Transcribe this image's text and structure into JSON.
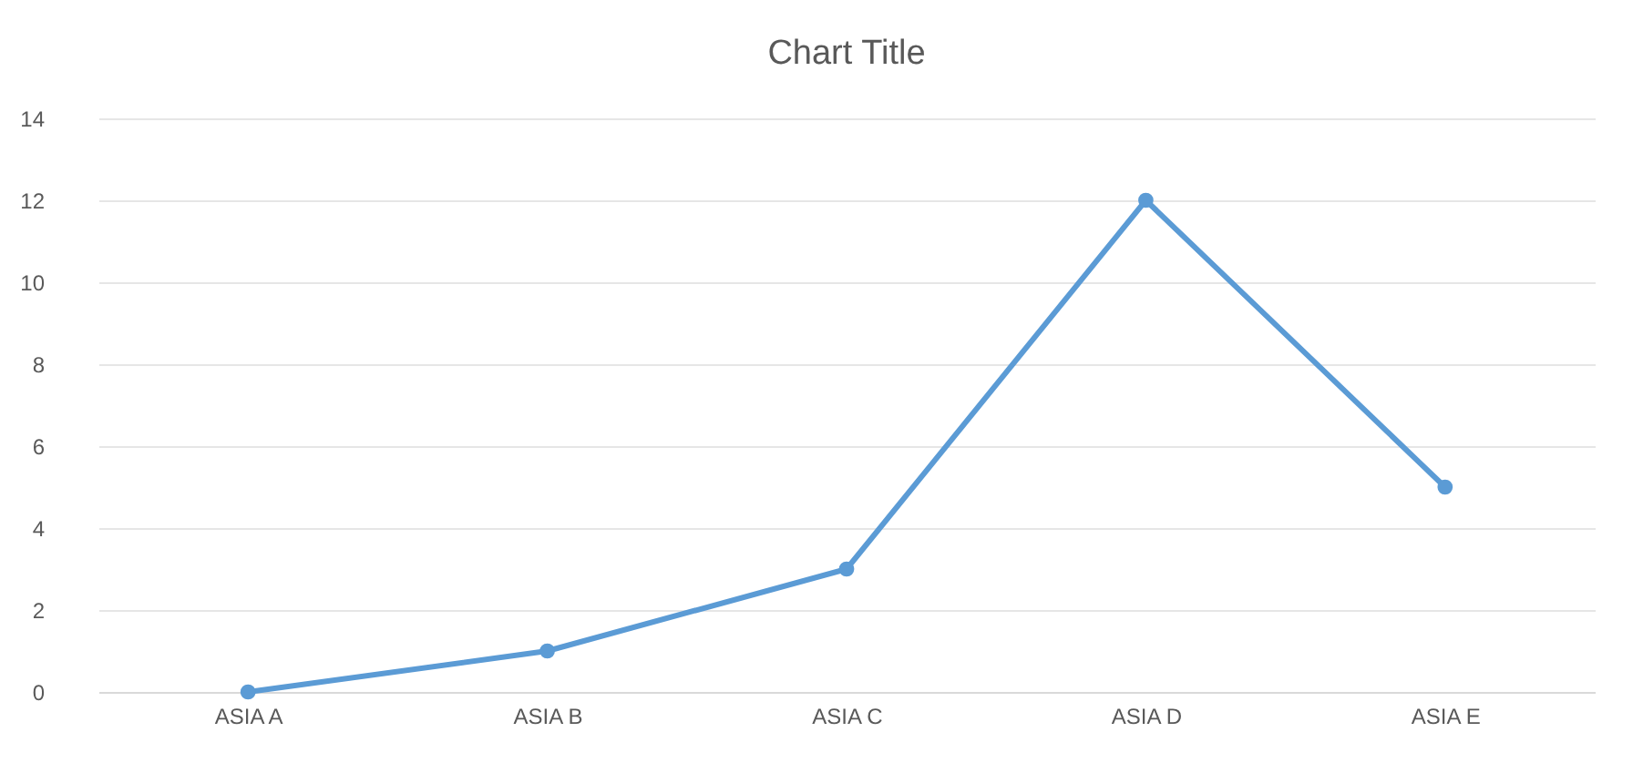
{
  "chart_data": {
    "type": "line",
    "title": "Chart Title",
    "categories": [
      "ASIA A",
      "ASIA B",
      "ASIA C",
      "ASIA D",
      "ASIA E"
    ],
    "series": [
      {
        "color": "#5b9bd5",
        "values": [
          0,
          1,
          3,
          12,
          5
        ]
      }
    ],
    "ylim": [
      0,
      14
    ],
    "yticks": [
      0,
      2,
      4,
      6,
      8,
      10,
      12,
      14
    ],
    "grid": "y",
    "marker": "circle"
  }
}
